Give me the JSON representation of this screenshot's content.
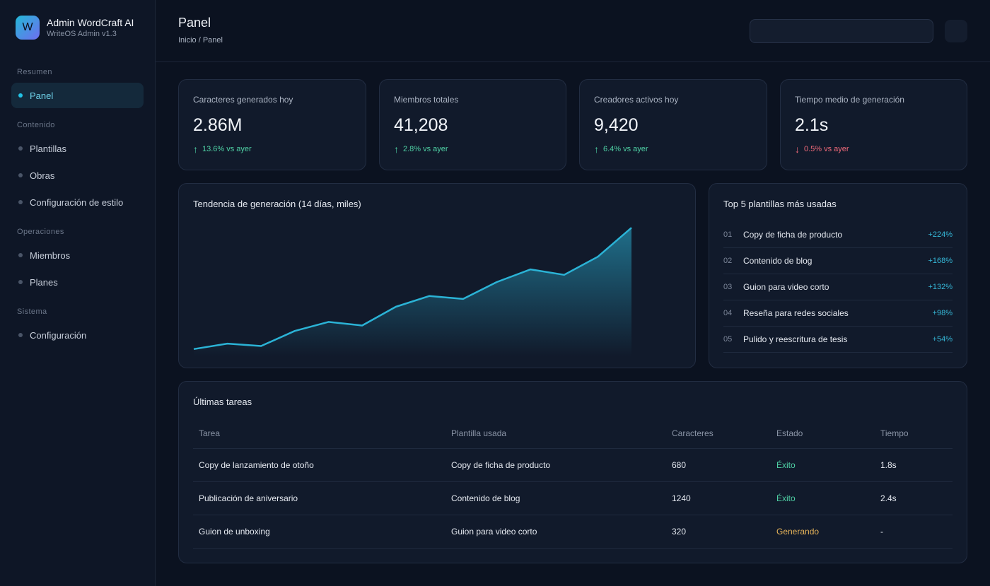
{
  "brand": {
    "logo_letter": "W",
    "name": "Admin WordCraft AI",
    "subtitle": "WriteOS Admin v1.3"
  },
  "sidebar": {
    "sections": [
      {
        "title": "Resumen",
        "items": [
          {
            "label": "Panel",
            "active": true
          }
        ]
      },
      {
        "title": "Contenido",
        "items": [
          {
            "label": "Plantillas"
          },
          {
            "label": "Obras"
          },
          {
            "label": "Configuración de estilo"
          }
        ]
      },
      {
        "title": "Operaciones",
        "items": [
          {
            "label": "Miembros"
          },
          {
            "label": "Planes"
          }
        ]
      },
      {
        "title": "Sistema",
        "items": [
          {
            "label": "Configuración"
          }
        ]
      }
    ]
  },
  "header": {
    "title": "Panel",
    "breadcrumb": "Inicio / Panel"
  },
  "stats": [
    {
      "label": "Caracteres generados hoy",
      "value": "2.86M",
      "arrow": "↑",
      "trend": "13.6% vs ayer",
      "direction": "up"
    },
    {
      "label": "Miembros totales",
      "value": "41,208",
      "arrow": "↑",
      "trend": "2.8% vs ayer",
      "direction": "up"
    },
    {
      "label": "Creadores activos hoy",
      "value": "9,420",
      "arrow": "↑",
      "trend": "6.4% vs ayer",
      "direction": "up"
    },
    {
      "label": "Tiempo medio de generación",
      "value": "2.1s",
      "arrow": "↓",
      "trend": "0.5% vs ayer",
      "direction": "down"
    }
  ],
  "trend_chart": {
    "title": "Tendencia de generación (14 días, miles)",
    "line_color": "#2bb3d6"
  },
  "chart_data": {
    "type": "area",
    "title": "Tendencia de generación (14 días, miles)",
    "x": [
      1,
      2,
      3,
      4,
      5,
      6,
      7,
      8,
      9,
      10,
      11,
      12,
      13,
      14
    ],
    "series": [
      {
        "values": [
          12,
          21,
          17,
          42,
          57,
          51,
          82,
          100,
          95,
          123,
          144,
          135,
          165,
          213
        ]
      }
    ],
    "ylim": [
      0,
      225
    ],
    "grid": false
  },
  "top_templates": {
    "title": "Top 5 plantillas más usadas",
    "items": [
      {
        "rank": "01",
        "name": "Copy de ficha de producto",
        "growth": "+224%"
      },
      {
        "rank": "02",
        "name": "Contenido de blog",
        "growth": "+168%"
      },
      {
        "rank": "03",
        "name": "Guion para video corto",
        "growth": "+132%"
      },
      {
        "rank": "04",
        "name": "Reseña para redes sociales",
        "growth": "+98%"
      },
      {
        "rank": "05",
        "name": "Pulido y reescritura de tesis",
        "growth": "+54%"
      }
    ]
  },
  "tasks": {
    "title": "Últimas tareas",
    "columns": [
      "Tarea",
      "Plantilla usada",
      "Caracteres",
      "Estado",
      "Tiempo"
    ],
    "rows": [
      {
        "task": "Copy de lanzamiento de otoño",
        "template": "Copy de ficha de producto",
        "chars": "680",
        "status": "Éxito",
        "status_kind": "ok",
        "time": "1.8s"
      },
      {
        "task": "Publicación de aniversario",
        "template": "Contenido de blog",
        "chars": "1240",
        "status": "Éxito",
        "status_kind": "ok",
        "time": "2.4s"
      },
      {
        "task": "Guion de unboxing",
        "template": "Guion para video corto",
        "chars": "320",
        "status": "Generando",
        "status_kind": "run",
        "time": "-"
      }
    ]
  }
}
